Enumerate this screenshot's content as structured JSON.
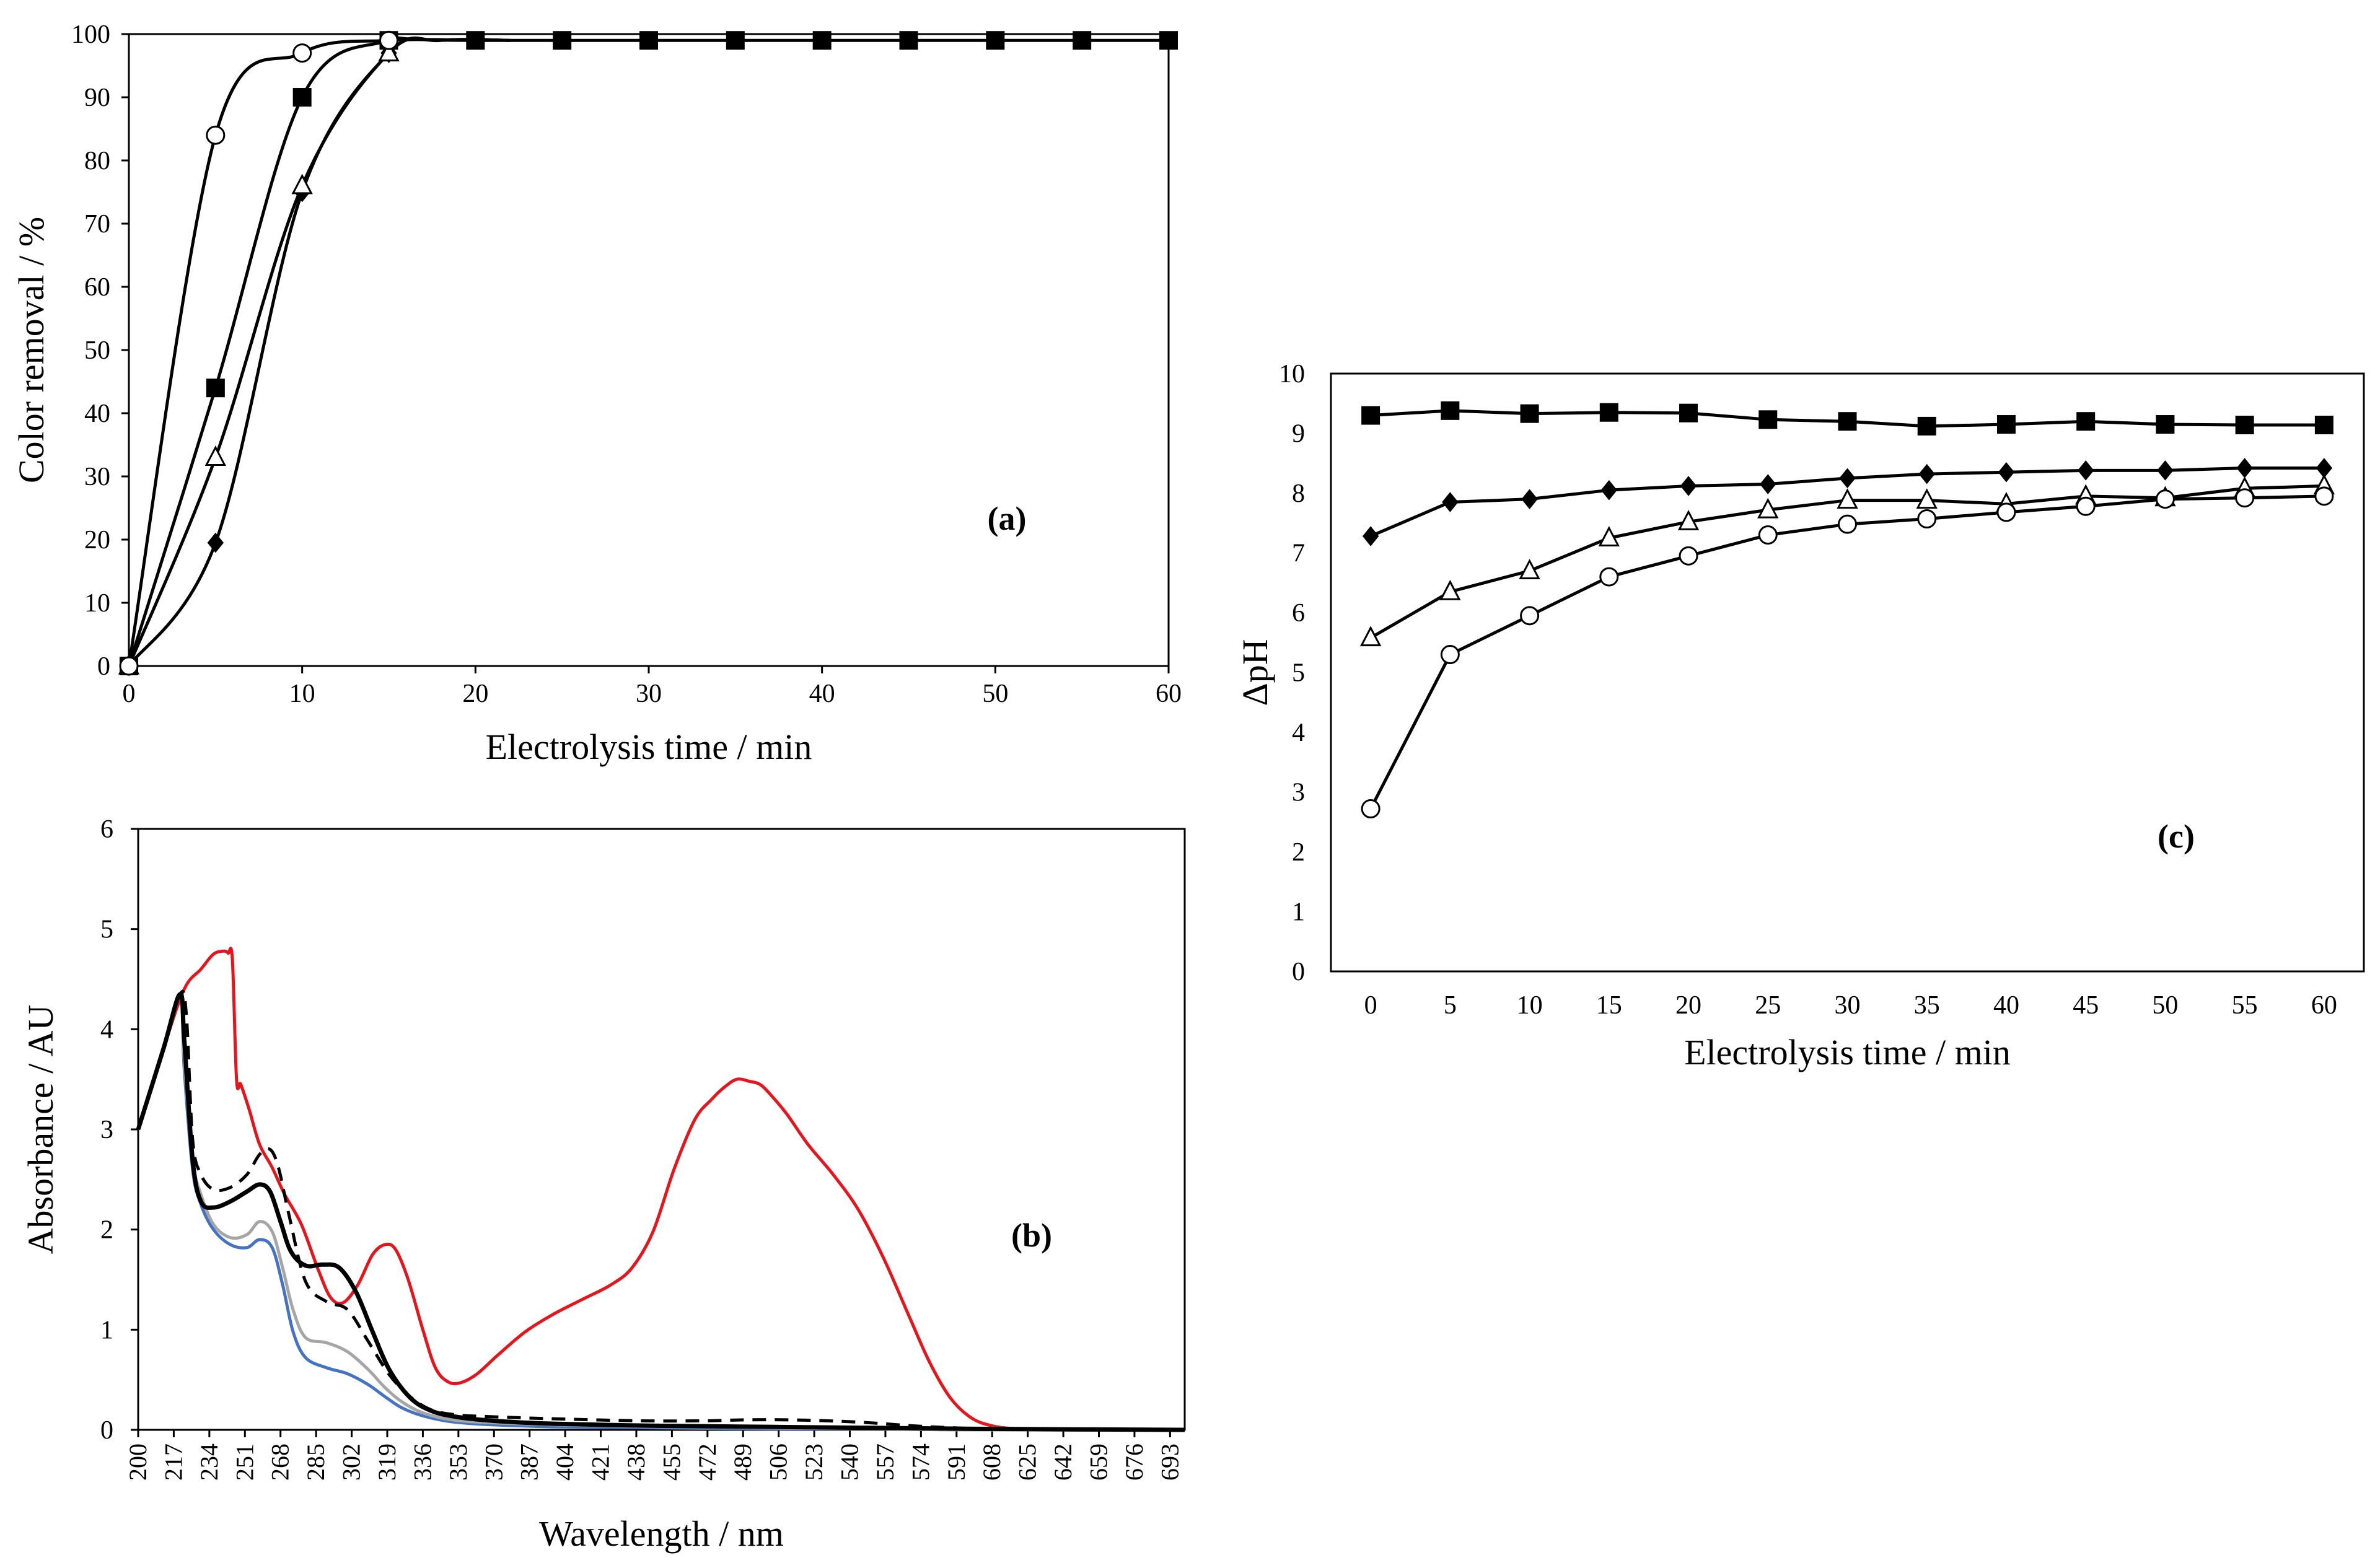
{
  "chart_data": [
    {
      "id": "a",
      "type": "scatter",
      "panel_label": "(a)",
      "xlabel": "Electrolysis time / min",
      "ylabel": "Color removal / %",
      "xlim": [
        0,
        60
      ],
      "ylim": [
        0,
        100
      ],
      "xticks": [
        "0",
        "10",
        "20",
        "30",
        "40",
        "50",
        "60"
      ],
      "yticks": [
        "0",
        "10",
        "20",
        "30",
        "40",
        "50",
        "60",
        "70",
        "80",
        "90",
        "100"
      ],
      "series": [
        {
          "name": "open-circle",
          "marker": "circle-open",
          "x": [
            0,
            5,
            10,
            15
          ],
          "values": [
            0,
            84,
            97,
            99
          ],
          "curve_x": [
            0,
            5,
            10,
            15,
            20
          ],
          "curve_y": [
            0,
            84,
            97,
            99,
            99
          ]
        },
        {
          "name": "filled-square",
          "marker": "square",
          "x": [
            0,
            5,
            10,
            15,
            20,
            25,
            30,
            35,
            40,
            45,
            50,
            55,
            60
          ],
          "values": [
            0,
            44,
            90,
            99,
            99,
            99,
            99,
            99,
            99,
            99,
            99,
            99,
            99
          ],
          "curve_x": [
            0,
            5,
            10,
            15,
            20,
            60
          ],
          "curve_y": [
            0,
            44,
            90,
            99,
            99,
            99
          ]
        },
        {
          "name": "open-triangle",
          "marker": "triangle-open",
          "x": [
            0,
            5,
            10,
            15
          ],
          "values": [
            0,
            33,
            76,
            97
          ],
          "curve_x": [
            0,
            5,
            10,
            15,
            18,
            22
          ],
          "curve_y": [
            0,
            33,
            76,
            97,
            99,
            99
          ]
        },
        {
          "name": "filled-diamond",
          "marker": "diamond",
          "x": [
            0,
            5,
            10,
            15
          ],
          "values": [
            0,
            19.5,
            75,
            97
          ],
          "curve_x": [
            0,
            5,
            10,
            15,
            18,
            22
          ],
          "curve_y": [
            0,
            19.5,
            75,
            97,
            99,
            99
          ]
        }
      ]
    },
    {
      "id": "b",
      "type": "line",
      "panel_label": "(b)",
      "xlabel": "Wavelength / nm",
      "ylabel": "Absorbance / AU",
      "xlim": [
        200,
        700
      ],
      "ylim": [
        0,
        6
      ],
      "xticks": [
        "200",
        "217",
        "234",
        "251",
        "268",
        "285",
        "302",
        "319",
        "336",
        "353",
        "370",
        "387",
        "404",
        "421",
        "438",
        "455",
        "472",
        "489",
        "506",
        "523",
        "540",
        "557",
        "574",
        "591",
        "608",
        "625",
        "642",
        "659",
        "676",
        "693"
      ],
      "yticks": [
        "0",
        "1",
        "2",
        "3",
        "4",
        "5",
        "6"
      ],
      "series": [
        {
          "name": "red",
          "color": "#e8141c",
          "x": [
            200,
            212,
            222,
            230,
            236,
            241,
            243,
            245,
            247,
            249,
            253,
            258,
            264,
            270,
            278,
            286,
            292,
            298,
            305,
            312,
            318,
            323,
            329,
            336,
            342,
            348,
            354,
            362,
            372,
            385,
            398,
            412,
            426,
            436,
            446,
            456,
            466,
            474,
            480,
            486,
            492,
            497,
            502,
            510,
            520,
            532,
            544,
            556,
            568,
            578,
            588,
            598,
            608,
            620,
            640,
            700
          ],
          "values": [
            3.0,
            3.8,
            4.4,
            4.6,
            4.75,
            4.78,
            4.76,
            4.7,
            3.5,
            3.45,
            3.2,
            2.85,
            2.62,
            2.35,
            2.05,
            1.6,
            1.32,
            1.27,
            1.45,
            1.75,
            1.85,
            1.8,
            1.5,
            1.0,
            0.62,
            0.48,
            0.47,
            0.56,
            0.75,
            0.98,
            1.15,
            1.3,
            1.45,
            1.62,
            1.98,
            2.6,
            3.1,
            3.3,
            3.42,
            3.5,
            3.48,
            3.45,
            3.35,
            3.15,
            2.85,
            2.55,
            2.2,
            1.72,
            1.15,
            0.68,
            0.32,
            0.12,
            0.04,
            0.01,
            0.0,
            0.0
          ]
        },
        {
          "name": "blue",
          "color": "#4472c4",
          "x": [
            200,
            212,
            220,
            222,
            226,
            230,
            236,
            244,
            252,
            258,
            264,
            269,
            274,
            280,
            290,
            300,
            310,
            318,
            326,
            336,
            350,
            370,
            400,
            450,
            500,
            550,
            600,
            700
          ],
          "values": [
            3.0,
            3.8,
            4.35,
            3.6,
            2.6,
            2.25,
            2.0,
            1.85,
            1.82,
            1.9,
            1.82,
            1.45,
            0.98,
            0.72,
            0.62,
            0.56,
            0.45,
            0.33,
            0.22,
            0.14,
            0.08,
            0.05,
            0.03,
            0.02,
            0.01,
            0.01,
            0.0,
            0.0
          ]
        },
        {
          "name": "gray",
          "color": "#a6a6a6",
          "x": [
            200,
            212,
            220,
            222,
            226,
            230,
            236,
            244,
            252,
            258,
            264,
            269,
            274,
            280,
            290,
            300,
            310,
            318,
            326,
            336,
            350,
            370,
            400,
            450,
            500,
            550,
            600,
            700
          ],
          "values": [
            3.0,
            3.8,
            4.35,
            3.7,
            2.7,
            2.35,
            2.05,
            1.92,
            1.95,
            2.08,
            1.98,
            1.62,
            1.2,
            0.92,
            0.87,
            0.78,
            0.6,
            0.42,
            0.28,
            0.17,
            0.1,
            0.07,
            0.05,
            0.03,
            0.02,
            0.01,
            0.0,
            0.0
          ]
        },
        {
          "name": "black-dashed",
          "color": "#000000",
          "dashed": true,
          "x": [
            200,
            212,
            220,
            223,
            226,
            230,
            236,
            244,
            252,
            258,
            263,
            267,
            272,
            280,
            290,
            300,
            310,
            320,
            330,
            340,
            352,
            370,
            400,
            440,
            470,
            490,
            510,
            530,
            550,
            570,
            590,
            610,
            700
          ],
          "values": [
            3.0,
            3.8,
            4.35,
            4.15,
            2.9,
            2.55,
            2.4,
            2.42,
            2.55,
            2.75,
            2.8,
            2.62,
            2.15,
            1.48,
            1.28,
            1.2,
            0.88,
            0.55,
            0.33,
            0.2,
            0.15,
            0.13,
            0.11,
            0.09,
            0.09,
            0.1,
            0.1,
            0.09,
            0.07,
            0.04,
            0.02,
            0.01,
            0.0
          ]
        },
        {
          "name": "black",
          "color": "#000000",
          "x": [
            200,
            212,
            220,
            222,
            226,
            230,
            236,
            244,
            252,
            258,
            263,
            268,
            273,
            280,
            288,
            296,
            304,
            312,
            320,
            330,
            340,
            352,
            370,
            400,
            450,
            500,
            550,
            600,
            700
          ],
          "values": [
            3.0,
            3.8,
            4.35,
            3.9,
            2.7,
            2.28,
            2.22,
            2.28,
            2.38,
            2.45,
            2.38,
            2.08,
            1.78,
            1.64,
            1.65,
            1.62,
            1.38,
            0.98,
            0.6,
            0.32,
            0.19,
            0.13,
            0.09,
            0.06,
            0.04,
            0.03,
            0.02,
            0.01,
            0.0
          ]
        }
      ]
    },
    {
      "id": "c",
      "type": "line",
      "panel_label": "(c)",
      "xlabel": "Electrolysis time / min",
      "ylabel": "ΔpH",
      "ylim": [
        0,
        10
      ],
      "categories": [
        "0",
        "5",
        "10",
        "15",
        "20",
        "25",
        "30",
        "35",
        "40",
        "45",
        "50",
        "55",
        "60"
      ],
      "yticks": [
        "0",
        "1",
        "2",
        "3",
        "4",
        "5",
        "6",
        "7",
        "8",
        "9",
        "10"
      ],
      "series": [
        {
          "name": "filled-square",
          "marker": "square",
          "values": [
            9.3,
            9.38,
            9.33,
            9.35,
            9.34,
            9.23,
            9.2,
            9.12,
            9.15,
            9.2,
            9.15,
            9.14,
            9.14
          ]
        },
        {
          "name": "filled-diamond",
          "marker": "diamond",
          "values": [
            7.28,
            7.85,
            7.9,
            8.05,
            8.12,
            8.15,
            8.25,
            8.32,
            8.35,
            8.38,
            8.38,
            8.42,
            8.42
          ]
        },
        {
          "name": "open-triangle",
          "marker": "triangle-open",
          "values": [
            5.58,
            6.35,
            6.7,
            7.25,
            7.52,
            7.72,
            7.88,
            7.88,
            7.82,
            7.95,
            7.92,
            8.08,
            8.12
          ]
        },
        {
          "name": "open-circle",
          "marker": "circle-open",
          "values": [
            2.72,
            5.3,
            5.95,
            6.6,
            6.95,
            7.3,
            7.48,
            7.57,
            7.68,
            7.78,
            7.9,
            7.92,
            7.95
          ]
        }
      ]
    }
  ]
}
